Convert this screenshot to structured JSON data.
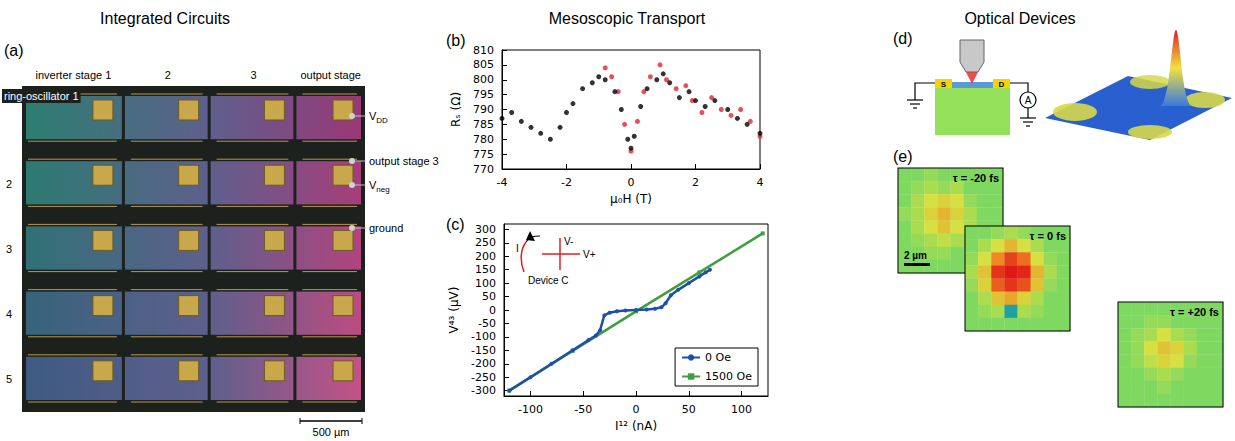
{
  "section_titles": [
    "Integrated Circuits",
    "Mesoscopic Transport",
    "Optical Devices"
  ],
  "panel_a": {
    "panel_label": "(a)",
    "column_labels": [
      "inverter stage 1",
      "2",
      "3",
      "output stage"
    ],
    "row_labels": [
      "ring-oscillator 1",
      "2",
      "3",
      "4",
      "5"
    ],
    "annotations": [
      {
        "text": "V",
        "sub": "DD"
      },
      {
        "text": "output stage 3"
      },
      {
        "text": "V",
        "sub": "neg"
      },
      {
        "text": "ground"
      }
    ],
    "scale_bar": "500 µm"
  },
  "chart_data": [
    {
      "panel_label": "(b)",
      "type": "scatter",
      "xlabel": "μ₀H (T)",
      "ylabel": "Rₛ (Ω)",
      "xlim": [
        -4,
        4
      ],
      "xticks": [
        -4,
        -2,
        0,
        2,
        4
      ],
      "ylim": [
        770,
        810
      ],
      "yticks": [
        770,
        775,
        780,
        785,
        790,
        795,
        800,
        805,
        810
      ],
      "grid": false,
      "marker": "circle",
      "series": [
        {
          "color": "#000000",
          "x": [
            -4,
            -3.7,
            -3.4,
            -3.1,
            -2.8,
            -2.5,
            -2.2,
            -2,
            -1.8,
            -1.5,
            -1.2,
            -1,
            -0.8,
            -0.5,
            -0.3,
            -0.1,
            0,
            0.1,
            0.3,
            0.5,
            0.8,
            1,
            1.2,
            1.5,
            1.8,
            2,
            2.3,
            2.6,
            3,
            3.3,
            3.6,
            4
          ],
          "values": [
            787,
            789,
            786,
            784,
            782,
            780,
            784,
            789,
            792,
            797,
            799,
            801,
            800,
            796,
            790,
            780,
            777,
            781,
            791,
            797,
            800,
            802,
            799,
            794,
            796,
            793,
            791,
            793,
            790,
            787,
            785,
            782
          ]
        },
        {
          "color": "#e8202a",
          "x": [
            -0.8,
            -0.6,
            -0.4,
            -0.2,
            0,
            0.2,
            0.4,
            0.6,
            0.9,
            1.1,
            1.4,
            1.7,
            1.9,
            2.2,
            2.5,
            2.8,
            3.1,
            3.4,
            3.7,
            4
          ],
          "values": [
            804,
            801,
            796,
            785,
            776,
            786,
            796,
            801,
            805,
            800,
            797,
            798,
            793,
            789,
            794,
            790,
            788,
            790,
            786,
            781
          ]
        }
      ]
    },
    {
      "panel_label": "(c)",
      "type": "line",
      "xlabel": "I¹² (nA)",
      "ylabel": "V⁴³ (μV)",
      "xlim": [
        -125,
        125
      ],
      "xticks": [
        -100,
        -50,
        0,
        50,
        100
      ],
      "ylim": [
        -320,
        320
      ],
      "yticks": [
        -300,
        -250,
        -200,
        -150,
        -100,
        -50,
        0,
        50,
        100,
        150,
        200,
        250,
        300
      ],
      "grid": false,
      "legend": "lower right",
      "series": [
        {
          "name": "0 Oe",
          "color": "#1f4fa8",
          "marker": "circle",
          "x": [
            -120,
            -100,
            -80,
            -60,
            -45,
            -38,
            -34,
            -30,
            -25,
            -18,
            -10,
            0,
            10,
            18,
            24,
            28,
            33,
            40,
            50,
            60,
            66,
            70
          ],
          "values": [
            -300,
            -250,
            -200,
            -150,
            -112,
            -95,
            -75,
            -20,
            -10,
            -5,
            -2,
            0,
            2,
            5,
            10,
            25,
            55,
            75,
            100,
            125,
            140,
            150
          ]
        },
        {
          "name": "1500 Oe",
          "color": "#3f9f3f",
          "marker": "square",
          "x": [
            -120,
            -60,
            0,
            60,
            120
          ],
          "values": [
            -300,
            -152,
            -5,
            140,
            285
          ]
        }
      ],
      "inset": {
        "labels": [
          "I",
          "V-",
          "V+"
        ],
        "caption": "Device C"
      }
    }
  ],
  "panel_d": {
    "panel_label": "(d)",
    "contacts": [
      "S",
      "D"
    ],
    "meter": "A"
  },
  "panel_e": {
    "panel_label": "(e)",
    "scale_bar": "2 µm",
    "maps": [
      {
        "label": "τ = -20 fs",
        "cells": [
          [
            0.1,
            0.1,
            0.15,
            0.1,
            0.1,
            0.1,
            0.1,
            0.1
          ],
          [
            0.1,
            0.15,
            0.2,
            0.15,
            0.2,
            0.1,
            0.1,
            0.1
          ],
          [
            0.1,
            0.2,
            0.3,
            0.35,
            0.3,
            0.15,
            0.1,
            0.1
          ],
          [
            0.15,
            0.2,
            0.35,
            0.45,
            0.35,
            0.2,
            0.1,
            0.1
          ],
          [
            0.1,
            0.2,
            0.3,
            0.4,
            0.3,
            0.2,
            0.1,
            0.1
          ],
          [
            0.1,
            0.15,
            0.2,
            0.25,
            0.2,
            0.15,
            0.1,
            0.1
          ],
          [
            0.1,
            0.1,
            0.15,
            0.15,
            0.1,
            0.1,
            0.1,
            0.1
          ],
          [
            0.1,
            0.1,
            0.1,
            0.1,
            0.1,
            0.1,
            0.1,
            0.1
          ]
        ]
      },
      {
        "label": "τ = 0 fs",
        "cells": [
          [
            0.1,
            0.1,
            0.15,
            0.2,
            0.15,
            0.1,
            0.1,
            0.1
          ],
          [
            0.1,
            0.2,
            0.3,
            0.45,
            0.3,
            0.2,
            0.1,
            0.1
          ],
          [
            0.15,
            0.3,
            0.6,
            0.85,
            0.7,
            0.3,
            0.15,
            0.1
          ],
          [
            0.2,
            0.4,
            0.9,
            1.0,
            0.95,
            0.45,
            0.2,
            0.1
          ],
          [
            0.15,
            0.35,
            0.75,
            0.9,
            0.8,
            0.4,
            0.15,
            0.1
          ],
          [
            0.1,
            0.2,
            0.4,
            0.5,
            0.35,
            0.2,
            0.1,
            0.1
          ],
          [
            0.1,
            0.15,
            0.2,
            0.0,
            0.2,
            0.15,
            0.1,
            0.1
          ],
          [
            0.1,
            0.1,
            0.1,
            0.1,
            0.1,
            0.1,
            0.1,
            0.1
          ]
        ]
      },
      {
        "label": "τ = +20 fs",
        "cells": [
          [
            0.1,
            0.1,
            0.1,
            0.1,
            0.1,
            0.1,
            0.1,
            0.1
          ],
          [
            0.1,
            0.1,
            0.15,
            0.15,
            0.1,
            0.1,
            0.1,
            0.1
          ],
          [
            0.1,
            0.15,
            0.2,
            0.3,
            0.2,
            0.15,
            0.1,
            0.1
          ],
          [
            0.1,
            0.15,
            0.3,
            0.4,
            0.35,
            0.2,
            0.1,
            0.1
          ],
          [
            0.1,
            0.15,
            0.25,
            0.35,
            0.3,
            0.15,
            0.1,
            0.1
          ],
          [
            0.1,
            0.1,
            0.15,
            0.2,
            0.15,
            0.1,
            0.1,
            0.1
          ],
          [
            0.1,
            0.1,
            0.1,
            0.15,
            0.1,
            0.1,
            0.1,
            0.1
          ],
          [
            0.1,
            0.1,
            0.1,
            0.1,
            0.1,
            0.1,
            0.1,
            0.1
          ]
        ]
      }
    ]
  }
}
